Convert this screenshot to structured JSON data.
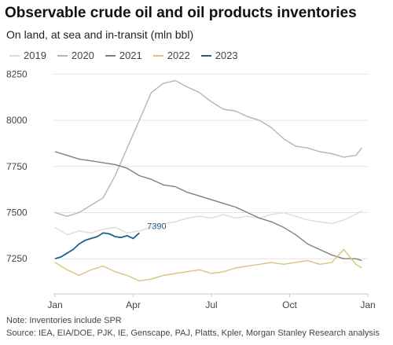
{
  "chart_data": {
    "type": "line",
    "title": "Observable crude oil and oil products inventories",
    "subtitle": "On land, at sea and in-transit (mln bbl)",
    "xlabel": "",
    "ylabel": "",
    "x_ticks": [
      "Jan",
      "Apr",
      "Jul",
      "Oct",
      "Jan"
    ],
    "y_ticks": [
      7250,
      7500,
      7750,
      8000,
      8250
    ],
    "ylim": [
      7085,
      8260
    ],
    "xlim": [
      1,
      53
    ],
    "x_unit": "week of year",
    "grid": "horizontal",
    "legend_position": "top-left",
    "series": [
      {
        "name": "2019",
        "color": "#dddddd",
        "x": [
          1,
          3,
          5,
          7,
          9,
          11,
          13,
          15,
          17,
          19,
          21,
          23,
          25,
          27,
          29,
          31,
          33,
          35,
          37,
          39,
          41,
          43,
          45,
          47,
          49,
          51,
          52
        ],
        "values": [
          7420,
          7380,
          7400,
          7390,
          7410,
          7420,
          7390,
          7400,
          7420,
          7440,
          7450,
          7470,
          7480,
          7470,
          7490,
          7470,
          7480,
          7470,
          7490,
          7500,
          7480,
          7460,
          7450,
          7440,
          7460,
          7490,
          7510
        ]
      },
      {
        "name": "2020",
        "color": "#b5b5b5",
        "x": [
          1,
          3,
          5,
          7,
          9,
          11,
          13,
          15,
          17,
          19,
          21,
          23,
          25,
          27,
          29,
          31,
          33,
          35,
          37,
          39,
          41,
          43,
          45,
          47,
          49,
          51,
          52
        ],
        "values": [
          7500,
          7480,
          7500,
          7540,
          7580,
          7700,
          7850,
          8000,
          8150,
          8200,
          8215,
          8180,
          8150,
          8100,
          8060,
          8050,
          8020,
          8000,
          7960,
          7900,
          7860,
          7850,
          7830,
          7820,
          7800,
          7810,
          7850
        ]
      },
      {
        "name": "2021",
        "color": "#7f7f7f",
        "x": [
          1,
          3,
          5,
          7,
          9,
          11,
          13,
          15,
          17,
          19,
          21,
          23,
          25,
          27,
          29,
          31,
          33,
          35,
          37,
          39,
          41,
          43,
          45,
          47,
          49,
          51,
          52
        ],
        "values": [
          7830,
          7810,
          7790,
          7780,
          7770,
          7760,
          7740,
          7700,
          7680,
          7650,
          7640,
          7610,
          7590,
          7570,
          7550,
          7530,
          7500,
          7470,
          7450,
          7420,
          7380,
          7330,
          7300,
          7270,
          7250,
          7250,
          7240
        ]
      },
      {
        "name": "2022",
        "color": "#d9c57a",
        "x": [
          1,
          3,
          5,
          7,
          9,
          11,
          13,
          15,
          17,
          19,
          21,
          23,
          25,
          27,
          29,
          31,
          33,
          35,
          37,
          39,
          41,
          43,
          45,
          47,
          49,
          51,
          52
        ],
        "values": [
          7230,
          7190,
          7160,
          7190,
          7210,
          7180,
          7160,
          7130,
          7140,
          7160,
          7170,
          7180,
          7190,
          7170,
          7180,
          7200,
          7210,
          7220,
          7230,
          7220,
          7230,
          7240,
          7220,
          7230,
          7300,
          7220,
          7200
        ]
      },
      {
        "name": "2023",
        "color": "#1f5f8b",
        "x": [
          1,
          2,
          3,
          4,
          5,
          6,
          7,
          8,
          9,
          10,
          11,
          12,
          13,
          14,
          15
        ],
        "values": [
          7250,
          7260,
          7280,
          7300,
          7330,
          7350,
          7360,
          7370,
          7390,
          7385,
          7370,
          7365,
          7375,
          7360,
          7390
        ]
      }
    ],
    "annotations": [
      {
        "text": "7390",
        "series": "2023",
        "x": 15,
        "y": 7390
      }
    ]
  },
  "footnotes": {
    "note": "Note: Inventories include SPR",
    "source": "Source: IEA, EIA/DOE, PJK, IE, Genscape, PAJ, Platts, Kpler, Morgan Stanley Research analysis"
  }
}
